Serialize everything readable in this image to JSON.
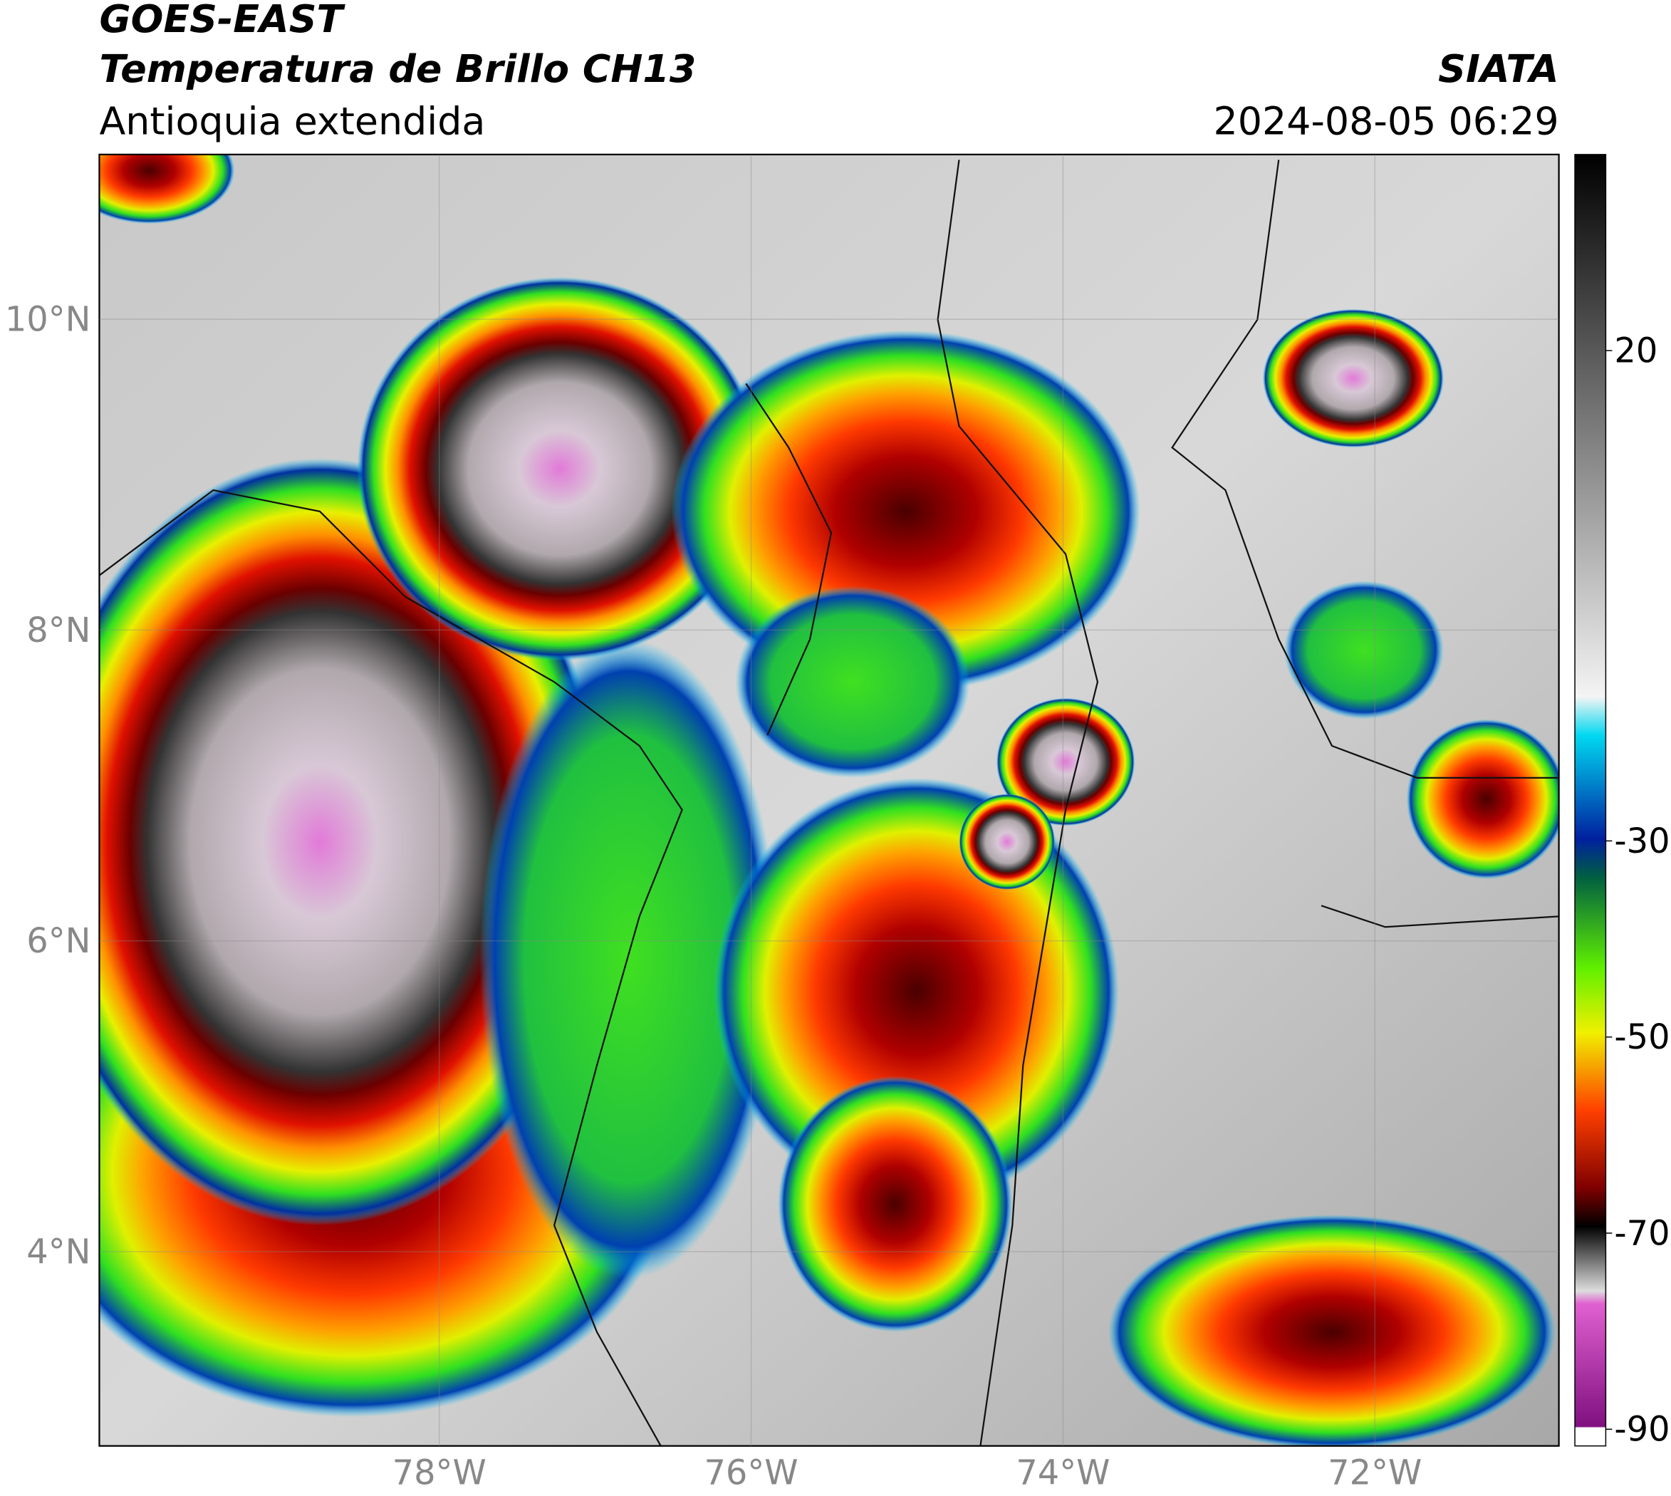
{
  "header": {
    "title": "GOES-EAST",
    "subtitle": "Temperatura de Brillo CH13",
    "region": "Antioquia extendida",
    "source": "SIATA",
    "timestamp": "2024-08-05 06:29"
  },
  "map": {
    "xlim": [
      -80.18,
      -70.82
    ],
    "ylim": [
      2.75,
      11.06
    ],
    "xticks": [
      {
        "value": -78,
        "label": "78°W"
      },
      {
        "value": -76,
        "label": "76°W"
      },
      {
        "value": -74,
        "label": "74°W"
      },
      {
        "value": -72,
        "label": "72°W"
      }
    ],
    "yticks": [
      {
        "value": 4,
        "label": "4°N"
      },
      {
        "value": 6,
        "label": "6°N"
      },
      {
        "value": 8,
        "label": "8°N"
      },
      {
        "value": 10,
        "label": "10°N"
      }
    ]
  },
  "colorbar": {
    "lim": [
      -91.7,
      40
    ],
    "ticks": [
      20,
      -30,
      -50,
      -70,
      -90
    ]
  }
}
